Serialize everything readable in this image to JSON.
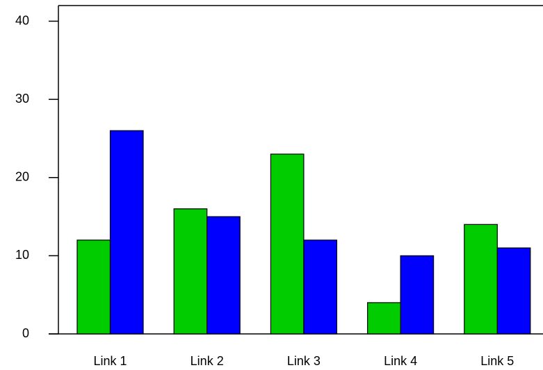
{
  "chart_data": {
    "type": "bar",
    "categories": [
      "Link 1",
      "Link 2",
      "Link 3",
      "Link 4",
      "Link 5"
    ],
    "series": [
      {
        "color": "#00cc00",
        "values": [
          12,
          16,
          23,
          4,
          14
        ]
      },
      {
        "color": "#0000ff",
        "values": [
          26,
          15,
          12,
          10,
          11
        ]
      }
    ],
    "ylim": [
      0,
      42
    ],
    "yticks": [
      0,
      10,
      20,
      30,
      40
    ],
    "grid": false
  }
}
